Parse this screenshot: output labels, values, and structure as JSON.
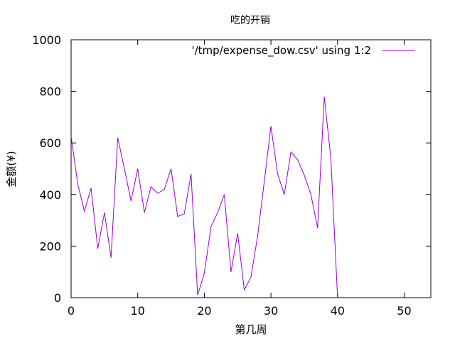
{
  "chart_data": {
    "type": "line",
    "title": "吃的开销",
    "xlabel": "第几周",
    "ylabel": "金额(¥)",
    "xlim": [
      0,
      54
    ],
    "ylim": [
      0,
      1000
    ],
    "xticks": [
      0,
      10,
      20,
      30,
      40,
      50
    ],
    "yticks": [
      0,
      200,
      400,
      600,
      800,
      1000
    ],
    "grid": false,
    "legend_position": "top-right",
    "colors": {
      "series": "#9400d3",
      "axis": "#000000"
    },
    "series": [
      {
        "name": "'/tmp/expense_dow.csv' using 1:2",
        "x": [
          0,
          1,
          2,
          3,
          4,
          5,
          6,
          7,
          8,
          9,
          10,
          11,
          12,
          13,
          14,
          15,
          16,
          17,
          18,
          19,
          20,
          21,
          22,
          23,
          24,
          25,
          26,
          27,
          28,
          29,
          30,
          31,
          32,
          33,
          34,
          35,
          36,
          37,
          38,
          39,
          40
        ],
        "y": [
          625,
          440,
          335,
          425,
          190,
          330,
          155,
          620,
          500,
          375,
          500,
          330,
          430,
          405,
          420,
          500,
          315,
          325,
          480,
          10,
          95,
          275,
          330,
          400,
          100,
          250,
          30,
          80,
          240,
          450,
          665,
          480,
          400,
          565,
          535,
          475,
          400,
          270,
          780,
          540,
          0
        ]
      }
    ]
  }
}
